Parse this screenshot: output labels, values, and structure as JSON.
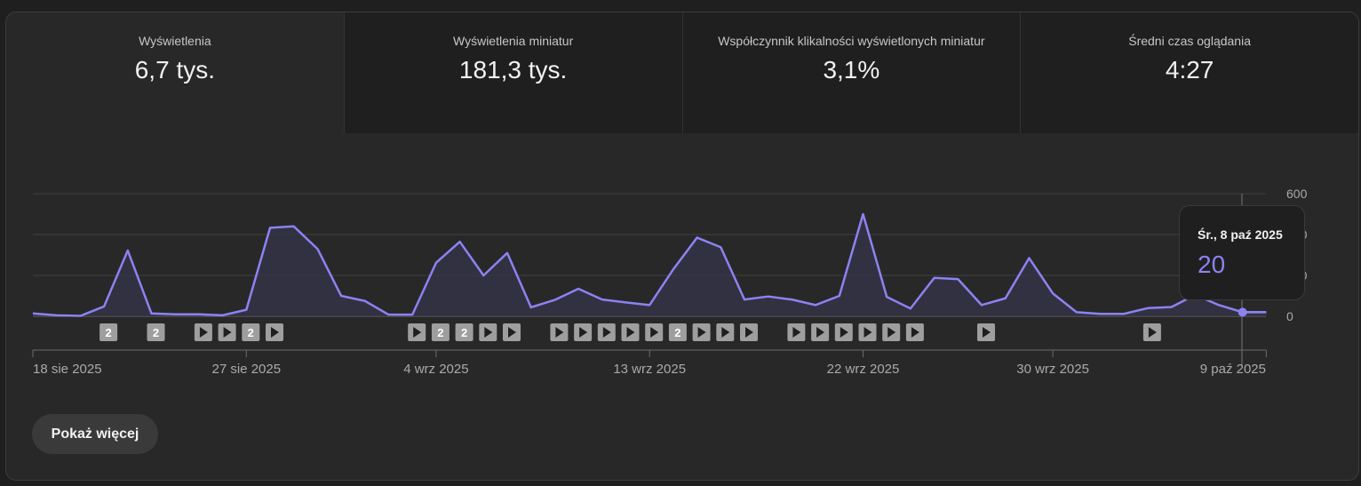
{
  "tabs": [
    {
      "label": "Wyświetlenia",
      "value": "6,7 tys."
    },
    {
      "label": "Wyświetlenia miniatur",
      "value": "181,3 tys."
    },
    {
      "label": "Współczynnik klikalności wyświetlonych miniatur",
      "value": "3,1%"
    },
    {
      "label": "Średni czas oglądania",
      "value": "4:27"
    }
  ],
  "tooltip": {
    "date": "Śr., 8 paź 2025",
    "value": "20"
  },
  "show_more_label": "Pokaż więcej",
  "colors": {
    "line": "#8b83f2",
    "area": "#36344a",
    "background": "#282828",
    "marker": "#9e9e9e"
  },
  "chart_data": {
    "type": "area",
    "y_ticks": [
      "600",
      "400",
      "200",
      "0"
    ],
    "ylim": [
      0,
      600
    ],
    "x_labels": [
      "18 sie 2025",
      "27 sie 2025",
      "4 wrz 2025",
      "13 wrz 2025",
      "22 wrz 2025",
      "30 wrz 2025",
      "9 paź 2025"
    ],
    "x_label_index": [
      0,
      9,
      17,
      26,
      35,
      43,
      52
    ],
    "grid": true,
    "series": [
      {
        "values": [
          14,
          5,
          2,
          48,
          322,
          14,
          10,
          10,
          5,
          32,
          433,
          440,
          330,
          100,
          75,
          8,
          8,
          262,
          365,
          200,
          310,
          44,
          80,
          135,
          82,
          68,
          55,
          230,
          385,
          338,
          82,
          97,
          82,
          55,
          100,
          500,
          95,
          38,
          188,
          182,
          55,
          88,
          285,
          112,
          20,
          12,
          12,
          40,
          45,
          105,
          55,
          20,
          20
        ]
      }
    ],
    "annotation_markers": [
      {
        "day": 3,
        "label": "2"
      },
      {
        "day": 5,
        "label": "2"
      },
      {
        "day": 7,
        "label": ""
      },
      {
        "day": 8,
        "label": ""
      },
      {
        "day": 9,
        "label": "2"
      },
      {
        "day": 10,
        "label": ""
      },
      {
        "day": 16,
        "label": ""
      },
      {
        "day": 17,
        "label": "2"
      },
      {
        "day": 18,
        "label": "2"
      },
      {
        "day": 19,
        "label": ""
      },
      {
        "day": 20,
        "label": ""
      },
      {
        "day": 22,
        "label": ""
      },
      {
        "day": 23,
        "label": ""
      },
      {
        "day": 24,
        "label": ""
      },
      {
        "day": 25,
        "label": ""
      },
      {
        "day": 26,
        "label": ""
      },
      {
        "day": 27,
        "label": "2"
      },
      {
        "day": 28,
        "label": ""
      },
      {
        "day": 29,
        "label": ""
      },
      {
        "day": 30,
        "label": ""
      },
      {
        "day": 32,
        "label": ""
      },
      {
        "day": 33,
        "label": ""
      },
      {
        "day": 34,
        "label": ""
      },
      {
        "day": 35,
        "label": ""
      },
      {
        "day": 36,
        "label": ""
      },
      {
        "day": 37,
        "label": ""
      },
      {
        "day": 40,
        "label": ""
      },
      {
        "day": 47,
        "label": ""
      }
    ],
    "highlight_index": 51
  }
}
